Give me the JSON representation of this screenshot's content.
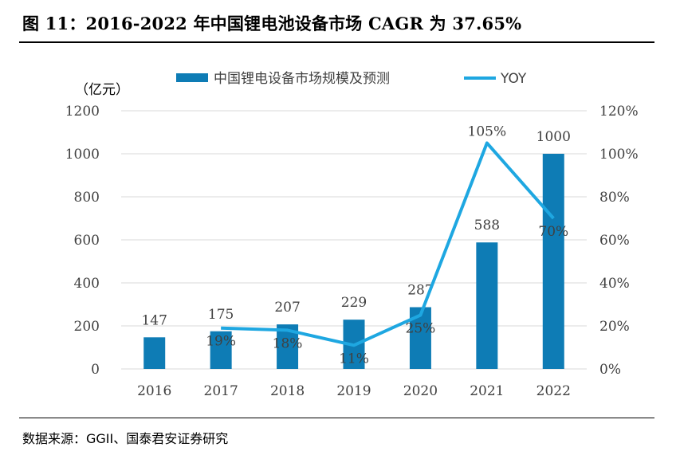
{
  "figure": {
    "title": "图 11：2016-2022 年中国锂电池设备市场 CAGR 为 37.65%",
    "source": "数据来源：GGII、国泰君安证券研究"
  },
  "chart_data": {
    "type": "bar",
    "categories": [
      "2016",
      "2017",
      "2018",
      "2019",
      "2020",
      "2021",
      "2022"
    ],
    "series": [
      {
        "name": "中国锂电设备市场规模及预测",
        "type": "bar",
        "axis": "left",
        "color": "#0E7CB5",
        "values": [
          147,
          175,
          207,
          229,
          287,
          588,
          1000
        ],
        "labels": [
          "147",
          "175",
          "207",
          "229",
          "287",
          "588",
          "1000"
        ]
      },
      {
        "name": "YOY",
        "type": "line",
        "axis": "right",
        "color": "#1EA7E1",
        "x": [
          "2017",
          "2018",
          "2019",
          "2020",
          "2021",
          "2022"
        ],
        "values": [
          19,
          18,
          11,
          25,
          105,
          70
        ],
        "labels": [
          "19%",
          "18%",
          "11%",
          "25%",
          "105%",
          "70%"
        ]
      }
    ],
    "y_left": {
      "unit_label": "（亿元）",
      "ylim": [
        0,
        1200
      ],
      "ticks": [
        "0",
        "200",
        "400",
        "600",
        "800",
        "1000",
        "1200"
      ]
    },
    "y_right": {
      "ylim": [
        0,
        120
      ],
      "ticks": [
        "0%",
        "20%",
        "40%",
        "60%",
        "80%",
        "100%",
        "120%"
      ]
    },
    "grid": "horizontal",
    "legend_position": "top"
  }
}
